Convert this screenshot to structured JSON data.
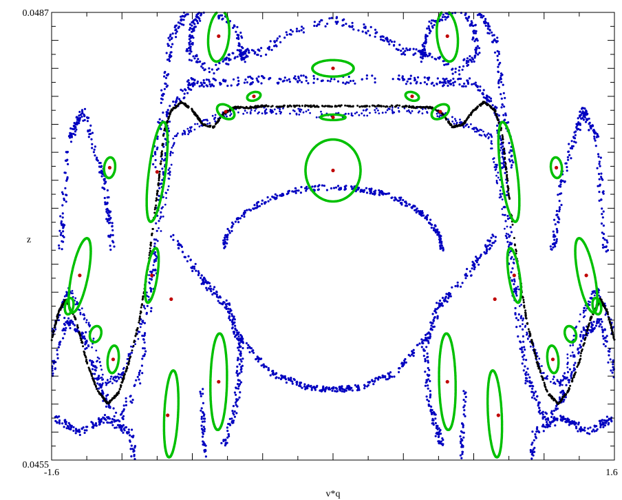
{
  "chart_data": {
    "type": "scatter",
    "title": "",
    "xlabel": "v*q",
    "ylabel": "z",
    "xlim": [
      -1.6,
      1.6
    ],
    "ylim": [
      0.0455,
      0.0487
    ],
    "x_tick_labels": [
      "-1.6",
      "1.6"
    ],
    "y_tick_labels": [
      "0.0455",
      "0.0487"
    ],
    "grid": false,
    "legend": "none",
    "colors": {
      "chaotic_orbits": "#0000c0",
      "last_invariant_curve": "#000000",
      "island_chains": "#00c000",
      "fixed_points": "#c00000"
    },
    "series": [
      {
        "kind": "fixed_points",
        "points": [
          [
            0.0,
            0.04757
          ],
          [
            0.0,
            0.04795
          ],
          [
            0.0,
            0.0483
          ],
          [
            -1.0,
            0.04756
          ],
          [
            -0.94,
            0.04582
          ],
          [
            0.94,
            0.04582
          ],
          [
            -0.65,
            0.04606
          ],
          [
            0.65,
            0.04606
          ],
          [
            -1.27,
            0.04759
          ],
          [
            1.27,
            0.04759
          ],
          [
            -0.65,
            0.04853
          ],
          [
            0.65,
            0.04853
          ],
          [
            -0.61,
            0.04799
          ],
          [
            0.61,
            0.04799
          ],
          [
            -1.44,
            0.04682
          ],
          [
            1.44,
            0.04682
          ],
          [
            -1.03,
            0.04682
          ],
          [
            1.03,
            0.04682
          ],
          [
            -1.25,
            0.04622
          ],
          [
            1.25,
            0.04622
          ],
          [
            -0.45,
            0.0481
          ],
          [
            0.45,
            0.0481
          ],
          [
            -0.92,
            0.04665
          ],
          [
            0.92,
            0.04665
          ]
        ]
      }
    ]
  }
}
